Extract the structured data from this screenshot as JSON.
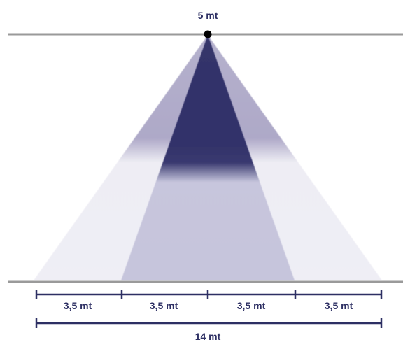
{
  "height_label": "5 mt",
  "segments": [
    {
      "label": "3,5 mt"
    },
    {
      "label": "3,5 mt"
    },
    {
      "label": "3,5 mt"
    },
    {
      "label": "3,5 mt"
    }
  ],
  "total_label": "14 mt",
  "colors": {
    "line": "#9a9a9a",
    "core": "#34346a",
    "inner_light": "#c6c5dc",
    "outer_dark": "#b2aecb",
    "outer_light": "#eeedf4",
    "dimension": "#2d2f63",
    "point": "#000000"
  }
}
